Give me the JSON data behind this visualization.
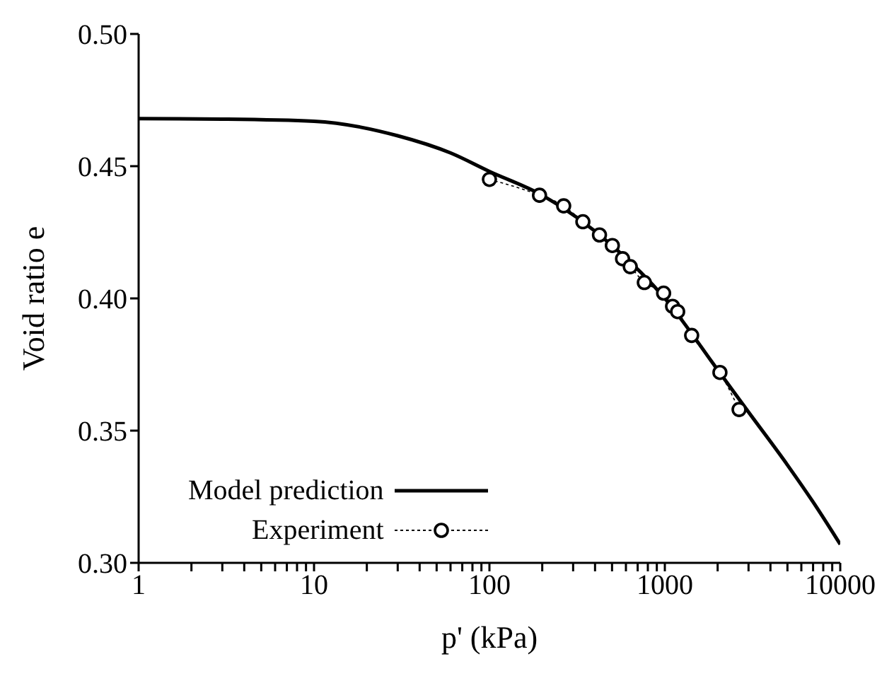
{
  "chart_data": {
    "type": "line",
    "xlabel": "p' (kPa)",
    "ylabel": "Void ratio e",
    "log": "x",
    "grid": false,
    "legend": "bottom left",
    "xlim": [
      1,
      10000
    ],
    "xticks": [
      1,
      {
        "value": 2,
        "label": null
      },
      {
        "value": 3,
        "label": null
      },
      {
        "value": 4,
        "label": null
      },
      {
        "value": 5,
        "label": null
      },
      {
        "value": 6,
        "label": null
      },
      {
        "value": 7,
        "label": null
      },
      {
        "value": 8,
        "label": null
      },
      {
        "value": 9,
        "label": null
      },
      10,
      {
        "value": 20,
        "label": null
      },
      {
        "value": 30,
        "label": null
      },
      {
        "value": 40,
        "label": null
      },
      {
        "value": 50,
        "label": null
      },
      {
        "value": 60,
        "label": null
      },
      {
        "value": 70,
        "label": null
      },
      {
        "value": 80,
        "label": null
      },
      {
        "value": 90,
        "label": null
      },
      100,
      {
        "value": 200,
        "label": null
      },
      {
        "value": 300,
        "label": null
      },
      {
        "value": 400,
        "label": null
      },
      {
        "value": 500,
        "label": null
      },
      {
        "value": 600,
        "label": null
      },
      {
        "value": 700,
        "label": null
      },
      {
        "value": 800,
        "label": null
      },
      {
        "value": 900,
        "label": null
      },
      1000,
      {
        "value": 2000,
        "label": null
      },
      {
        "value": 3000,
        "label": null
      },
      {
        "value": 4000,
        "label": null
      },
      {
        "value": 5000,
        "label": null
      },
      {
        "value": 6000,
        "label": null
      },
      {
        "value": 7000,
        "label": null
      },
      {
        "value": 8000,
        "label": null
      },
      {
        "value": 9000,
        "label": null
      },
      10000
    ],
    "ylim": [
      0.3,
      0.5
    ],
    "yticks": [
      {
        "value": 0.3,
        "label": "0.30"
      },
      0.35,
      {
        "value": 0.4,
        "label": "0.40"
      },
      0.45,
      {
        "value": 0.5,
        "label": "0.50"
      }
    ],
    "series": [
      {
        "name": "Model prediction",
        "color": "#000000",
        "marker": "none",
        "line_style": "solid",
        "x": [
          1,
          3,
          10,
          30,
          60,
          100,
          200,
          500,
          1000,
          2000,
          3000,
          5000,
          7000,
          10000
        ],
        "values": [
          0.468,
          0.4678,
          0.467,
          0.4615,
          0.455,
          0.448,
          0.439,
          0.42,
          0.4,
          0.373,
          0.357,
          0.337,
          0.323,
          0.307
        ]
      },
      {
        "name": "Experiment",
        "color": "#000000",
        "marker": "circle",
        "line_style": "dotted",
        "x": [
          100,
          193,
          265,
          341,
          424,
          502,
          574,
          635,
          764,
          984,
          1107,
          1183,
          1422,
          2061,
          2650
        ],
        "values": [
          0.445,
          0.439,
          0.435,
          0.429,
          0.424,
          0.42,
          0.415,
          0.412,
          0.406,
          0.402,
          0.397,
          0.395,
          0.386,
          0.372,
          0.358
        ]
      }
    ]
  }
}
